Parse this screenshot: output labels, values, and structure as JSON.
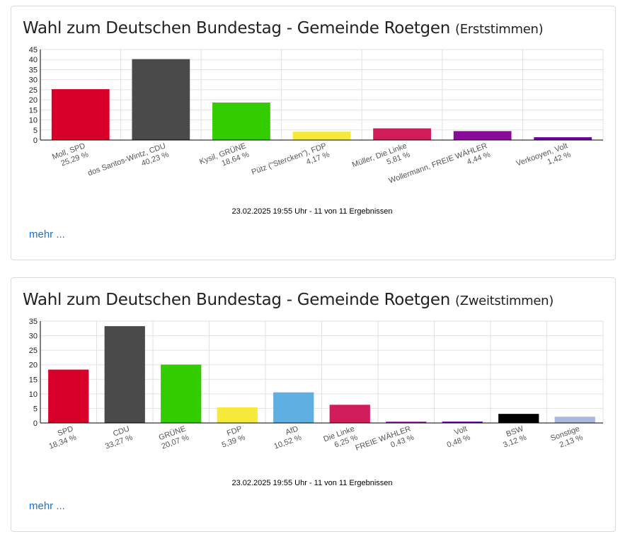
{
  "charts": [
    {
      "title": "Wahl zum Deutschen Bundestag - Gemeinde Roetgen",
      "subtitle": "(Erststimmen)",
      "timestamp": "23.02.2025 19:55 Uhr - 11 von 11 Ergebnissen",
      "more_label": "mehr ..."
    },
    {
      "title": "Wahl zum Deutschen Bundestag - Gemeinde Roetgen",
      "subtitle": "(Zweitstimmen)",
      "timestamp": "23.02.2025 19:55 Uhr - 11 von 11 Ergebnissen",
      "more_label": "mehr ..."
    }
  ],
  "chart_data": [
    {
      "type": "bar",
      "title": "Wahl zum Deutschen Bundestag - Gemeinde Roetgen (Erststimmen)",
      "categories": [
        "Moll, SPD",
        "dos Santos-Wintz, CDU",
        "Kysil, GRÜNE",
        "Pütz (\"Stercken\"), FDP",
        "Müller, Die Linke",
        "Wollermann, FREIE WÄHLER",
        "Verkooyen, Volt"
      ],
      "value_labels": [
        "25,29 %",
        "40,23 %",
        "18,64 %",
        "4,17 %",
        "5,81 %",
        "4,44 %",
        "1,42 %"
      ],
      "values": [
        25.29,
        40.23,
        18.64,
        4.17,
        5.81,
        4.44,
        1.42
      ],
      "colors": [
        "#d8002a",
        "#4a4a4a",
        "#33cc00",
        "#f5ea3a",
        "#d01c5a",
        "#8a0a9a",
        "#6a0a9a"
      ],
      "ylim": [
        0,
        45
      ],
      "yticks": [
        0,
        5,
        10,
        15,
        20,
        25,
        30,
        35,
        40,
        45
      ],
      "grid": true
    },
    {
      "type": "bar",
      "title": "Wahl zum Deutschen Bundestag - Gemeinde Roetgen (Zweitstimmen)",
      "categories": [
        "SPD",
        "CDU",
        "GRÜNE",
        "FDP",
        "AfD",
        "Die Linke",
        "FREIE WÄHLER",
        "Volt",
        "BSW",
        "Sonstige"
      ],
      "value_labels": [
        "18,34 %",
        "33,27 %",
        "20,07 %",
        "5,39 %",
        "10,52 %",
        "6,25 %",
        "0,43 %",
        "0,48 %",
        "3,12 %",
        "2,13 %"
      ],
      "values": [
        18.34,
        33.27,
        20.07,
        5.39,
        10.52,
        6.25,
        0.43,
        0.48,
        3.12,
        2.13
      ],
      "colors": [
        "#d8002a",
        "#4a4a4a",
        "#33cc00",
        "#f5ea3a",
        "#5fb0e0",
        "#d01c5a",
        "#8a0a9a",
        "#6a0a9a",
        "#000000",
        "#a8b8e0"
      ],
      "ylim": [
        0,
        35
      ],
      "yticks": [
        0,
        5,
        10,
        15,
        20,
        25,
        30,
        35
      ],
      "grid": true
    }
  ]
}
